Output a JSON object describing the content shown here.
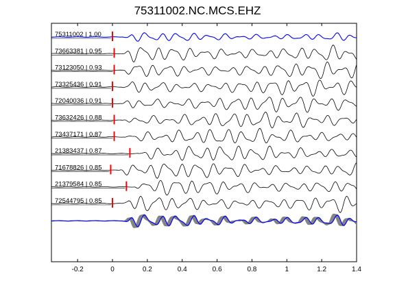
{
  "title": "75311002.NC.MCS.EHZ",
  "chart_data": {
    "type": "line",
    "title": "75311002.NC.MCS.EHZ",
    "xlabel": "",
    "ylabel": "",
    "xlim": [
      -0.35,
      1.4
    ],
    "xticks": [
      -0.2,
      0,
      0.2,
      0.4,
      0.6,
      0.8,
      1,
      1.2,
      1.4
    ],
    "xtick_labels": [
      "-0.2",
      "0",
      "0.2",
      "0.4",
      "0.6",
      "0.8",
      "1",
      "1.2",
      "1.4"
    ],
    "grid": false,
    "colors": {
      "reference": "#0000ff",
      "traces": "#000000",
      "picks": "#ff0000",
      "stack_overlay": "#808080"
    },
    "series": [
      {
        "name": "75311002 | 1.00",
        "pick_time": 0.0
      },
      {
        "name": "73663381 | 0.95",
        "pick_time": 0.01
      },
      {
        "name": "73123050 | 0.93",
        "pick_time": 0.01
      },
      {
        "name": "73325436 | 0.91",
        "pick_time": 0.0
      },
      {
        "name": "72040036 | 0.91",
        "pick_time": 0.0
      },
      {
        "name": "73632426 | 0.88",
        "pick_time": 0.01
      },
      {
        "name": "73437171 | 0.87",
        "pick_time": 0.01
      },
      {
        "name": "21383437 | 0.87",
        "pick_time": 0.1
      },
      {
        "name": "71678826 | 0.85",
        "pick_time": -0.01
      },
      {
        "name": "21379584 | 0.85",
        "pick_time": 0.08
      },
      {
        "name": "72544795 | 0.85",
        "pick_time": 0.0
      }
    ]
  }
}
